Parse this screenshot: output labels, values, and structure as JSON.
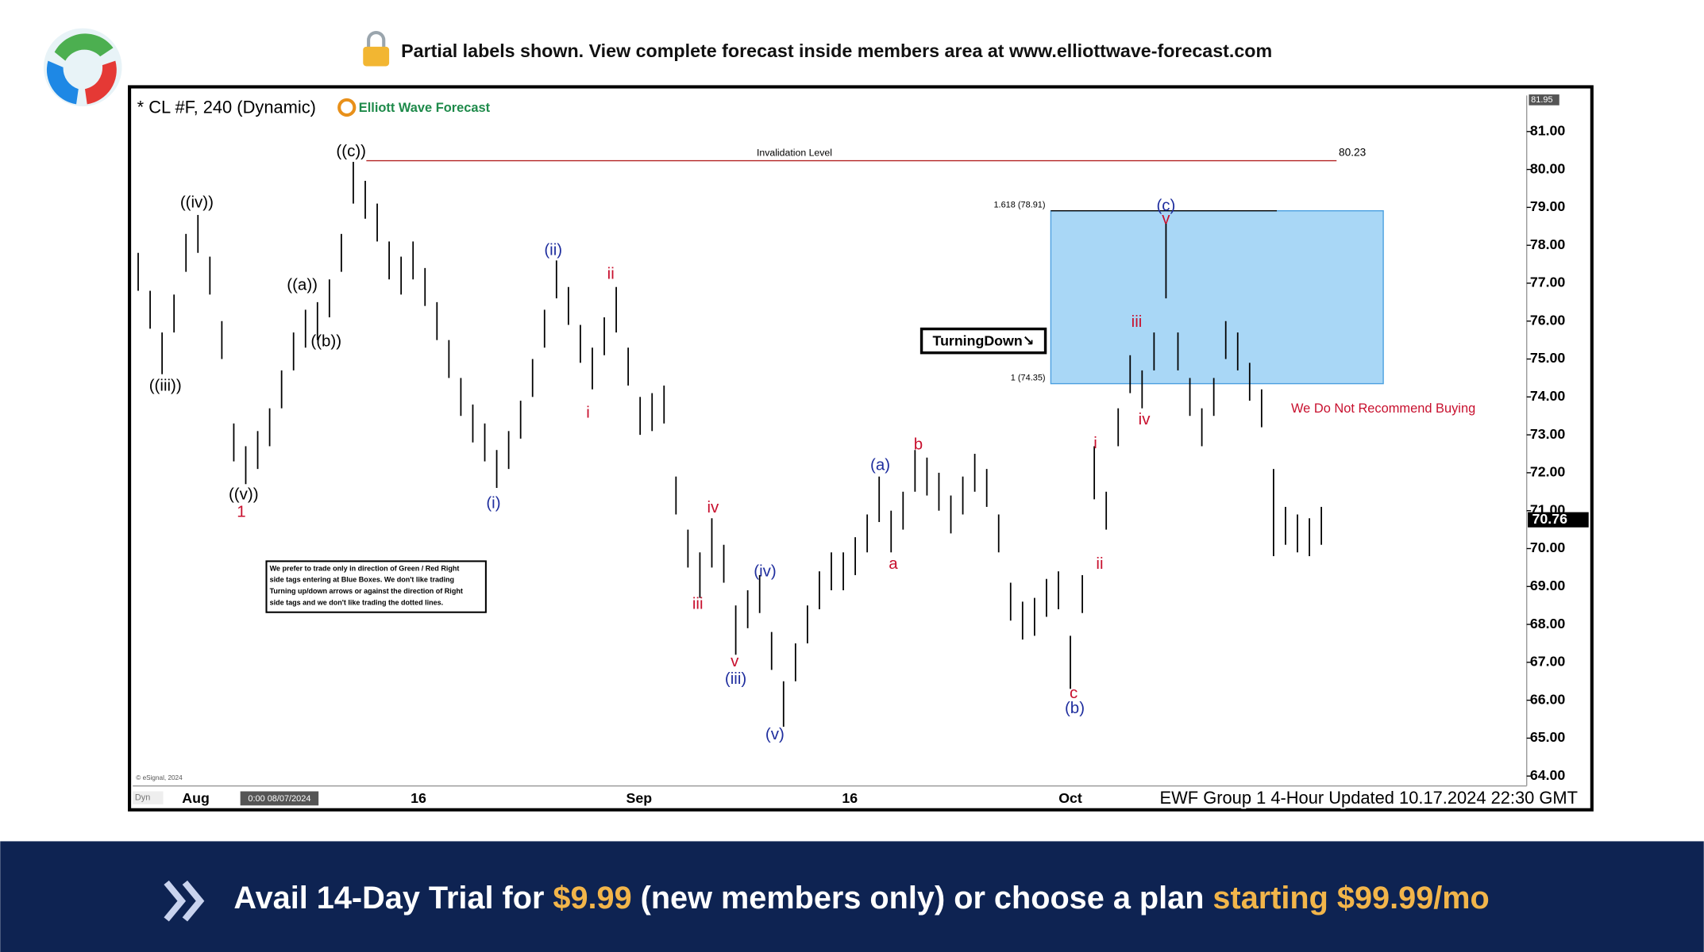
{
  "header": {
    "notice": "Partial labels shown. View complete forecast inside members area at www.elliottwave-forecast.com"
  },
  "chart_data": {
    "type": "range",
    "title": "* CL #F, 240 (Dynamic)",
    "brand": "Elliott Wave Forecast",
    "x_labels": [
      "Aug",
      "16",
      "Sep",
      "16",
      "Oct"
    ],
    "color": "#000000",
    "high": [
      77.8,
      76.8,
      75.7,
      76.7,
      78.3,
      78.8,
      77.7,
      76.0,
      73.3,
      72.7,
      73.1,
      73.7,
      74.7,
      75.7,
      76.3,
      76.5,
      77.1,
      78.3,
      80.2,
      79.7,
      79.1,
      78.1,
      77.7,
      78.1,
      77.4,
      76.5,
      75.5,
      74.5,
      73.8,
      73.3,
      72.6,
      73.1,
      73.9,
      75.0,
      76.3,
      77.6,
      76.9,
      75.9,
      75.3,
      76.1,
      76.9,
      75.3,
      74.0,
      74.1,
      74.3,
      71.9,
      70.5,
      69.9,
      70.8,
      70.1,
      68.5,
      68.9,
      69.3,
      67.8,
      66.5,
      67.5,
      68.5,
      69.4,
      69.9,
      69.9,
      70.3,
      70.9,
      71.9,
      71.0,
      71.5,
      72.6,
      72.4,
      72.0,
      71.4,
      71.9,
      72.5,
      72.1,
      70.9,
      69.1,
      68.6,
      68.7,
      69.2,
      69.4,
      67.7,
      69.3,
      72.7,
      71.5,
      73.7,
      75.1,
      74.7,
      75.7,
      78.6,
      75.7,
      74.5,
      73.7,
      74.5,
      76.0,
      75.7,
      74.9,
      74.2,
      72.1,
      71.1,
      70.9,
      70.8,
      71.1
    ],
    "low": [
      76.8,
      75.8,
      74.6,
      75.7,
      77.3,
      77.8,
      76.7,
      75.0,
      72.3,
      71.7,
      72.1,
      72.7,
      73.7,
      74.7,
      75.3,
      75.5,
      76.1,
      77.3,
      79.1,
      78.7,
      78.1,
      77.1,
      76.7,
      77.1,
      76.4,
      75.5,
      74.5,
      73.5,
      72.8,
      72.3,
      71.6,
      72.1,
      72.9,
      74.0,
      75.3,
      76.6,
      75.9,
      74.9,
      74.2,
      75.1,
      75.7,
      74.3,
      73.0,
      73.1,
      73.3,
      70.9,
      69.5,
      68.7,
      69.5,
      69.1,
      67.2,
      67.9,
      68.3,
      66.8,
      65.3,
      66.5,
      67.5,
      68.4,
      68.9,
      68.9,
      69.3,
      69.9,
      70.7,
      69.9,
      70.5,
      71.5,
      71.4,
      71.0,
      70.4,
      70.9,
      71.5,
      71.1,
      69.9,
      68.1,
      67.6,
      67.7,
      68.2,
      68.4,
      66.3,
      68.3,
      71.3,
      70.5,
      72.7,
      74.1,
      73.7,
      74.7,
      76.6,
      74.7,
      73.5,
      72.7,
      73.5,
      75.0,
      74.7,
      73.9,
      73.2,
      69.8,
      70.1,
      69.9,
      69.8,
      70.1
    ],
    "ylim": [
      63.74,
      81.95
    ],
    "yticks": [
      {
        "value": 64,
        "label": "64.00"
      },
      {
        "value": 65,
        "label": "65.00"
      },
      {
        "value": 66,
        "label": "66.00"
      },
      {
        "value": 67,
        "label": "67.00"
      },
      {
        "value": 68,
        "label": "68.00"
      },
      {
        "value": 69,
        "label": "69.00"
      },
      {
        "value": 70,
        "label": "70.00"
      },
      {
        "value": 71,
        "label": "71.00"
      },
      {
        "value": 72,
        "label": "72.00"
      },
      {
        "value": 73,
        "label": "73.00"
      },
      {
        "value": 74,
        "label": "74.00"
      },
      {
        "value": 75,
        "label": "75.00"
      },
      {
        "value": 76,
        "label": "76.00"
      },
      {
        "value": 77,
        "label": "77.00"
      },
      {
        "value": 78,
        "label": "78.00"
      },
      {
        "value": 79,
        "label": "79.00"
      },
      {
        "value": 80,
        "label": "80.00"
      },
      {
        "value": 81,
        "label": "81.00"
      }
    ],
    "last_price": 70.76,
    "invalidation": {
      "label": "Invalidation Level",
      "value": 80.23
    },
    "fib_levels": [
      {
        "label": "1.618 (78.91)",
        "value": 78.91
      },
      {
        "label": "1 (74.35)",
        "value": 74.35
      }
    ],
    "box_color": "#a9d7f6",
    "wave_labels": [
      {
        "text": "((iv))",
        "color": "#000000"
      },
      {
        "text": "((iii))",
        "color": "#000000"
      },
      {
        "text": "((v))",
        "color": "#000000"
      },
      {
        "text": "1",
        "color": "#c8102e"
      },
      {
        "text": "((a))",
        "color": "#000000"
      },
      {
        "text": "((b))",
        "color": "#000000"
      },
      {
        "text": "((c))",
        "color": "#000000"
      },
      {
        "text": "(ii)",
        "color": "#1f2e9e"
      },
      {
        "text": "(i)",
        "color": "#1f2e9e"
      },
      {
        "text": "ii",
        "color": "#c8102e"
      },
      {
        "text": "i",
        "color": "#c8102e"
      },
      {
        "text": "iv",
        "color": "#c8102e"
      },
      {
        "text": "iii",
        "color": "#c8102e"
      },
      {
        "text": "v",
        "color": "#c8102e"
      },
      {
        "text": "(iii)",
        "color": "#1f2e9e"
      },
      {
        "text": "(iv)",
        "color": "#1f2e9e"
      },
      {
        "text": "(v)",
        "color": "#1f2e9e"
      },
      {
        "text": "(a)",
        "color": "#1f2e9e"
      },
      {
        "text": "b",
        "color": "#c8102e"
      },
      {
        "text": "a",
        "color": "#c8102e"
      },
      {
        "text": "c",
        "color": "#c8102e"
      },
      {
        "text": "(b)",
        "color": "#1f2e9e"
      },
      {
        "text": "i",
        "color": "#c8102e"
      },
      {
        "text": "ii",
        "color": "#c8102e"
      },
      {
        "text": "iii",
        "color": "#c8102e"
      },
      {
        "text": "iv",
        "color": "#c8102e"
      },
      {
        "text": "(c)",
        "color": "#1f2e9e"
      },
      {
        "text": "v",
        "color": "#c8102e"
      }
    ],
    "turning_label": "TurningDown↘",
    "caution": "We Do Not Recommend Buying",
    "note": [
      "We prefer to trade only in direction of Green / Red Right",
      "side tags entering at Blue Boxes. We don't like trading",
      "Turning up/down arrows or against the direction of Right",
      "side tags and we don't like trading the dotted lines."
    ],
    "copyright": "© eSignal, 2024",
    "dyn_label": "Dyn",
    "cursor_date": "0:00 08/07/2024",
    "footer": "EWF Group 1 4-Hour Updated 10.17.2024 22:30 GMT"
  },
  "banner": {
    "parts": [
      "Avail 14-Day Trial for",
      "$9.99",
      "(new members only) or choose a plan",
      "starting $99.99/mo"
    ]
  }
}
